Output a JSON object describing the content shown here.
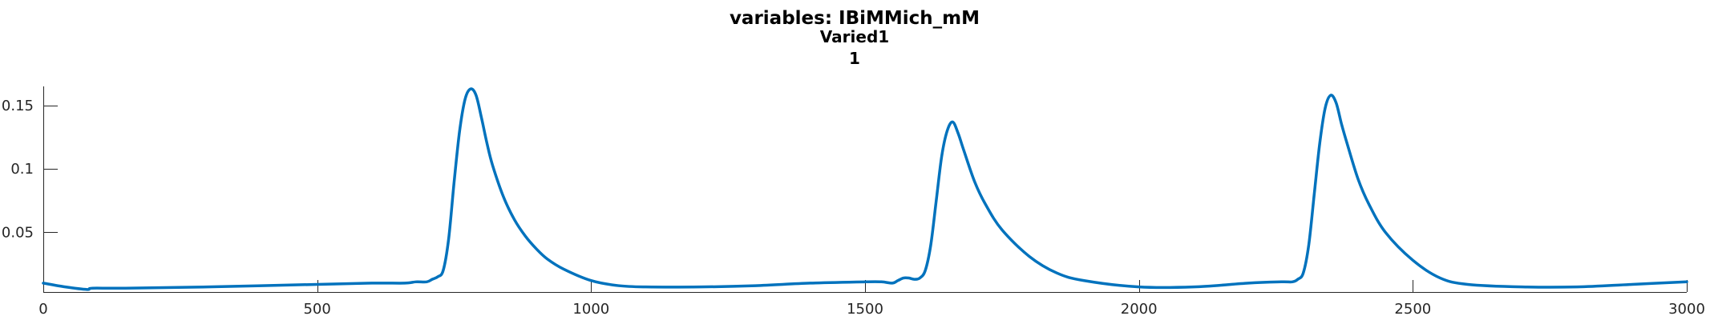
{
  "chart_data": {
    "type": "line",
    "title": "variables: IBiMMich_mM",
    "subtitle": "Varied1",
    "subtitle2": "1",
    "xlabel": "",
    "ylabel": "",
    "xlim": [
      0,
      3000
    ],
    "ylim": [
      0.003,
      0.165
    ],
    "xticks": [
      0,
      500,
      1000,
      1500,
      2000,
      2500,
      3000
    ],
    "xtick_labels": [
      "0",
      "500",
      "1000",
      "1500",
      "2000",
      "2500",
      "3000"
    ],
    "yticks": [
      0.05,
      0.1,
      0.15
    ],
    "ytick_labels": [
      "0.05",
      "0.1",
      "0.15"
    ],
    "grid": false,
    "legend": "none",
    "series": [
      {
        "color": "#0072BD",
        "x": [
          0,
          40,
          80,
          90,
          150,
          300,
          500,
          600,
          660,
          680,
          700,
          710,
          720,
          730,
          740,
          750,
          760,
          770,
          780,
          790,
          800,
          810,
          820,
          840,
          860,
          880,
          900,
          920,
          950,
          1000,
          1050,
          1100,
          1200,
          1300,
          1400,
          1500,
          1530,
          1550,
          1560,
          1570,
          1580,
          1590,
          1600,
          1610,
          1620,
          1630,
          1640,
          1650,
          1660,
          1670,
          1680,
          1700,
          1720,
          1750,
          1800,
          1850,
          1900,
          2000,
          2100,
          2200,
          2260,
          2280,
          2290,
          2300,
          2310,
          2320,
          2330,
          2340,
          2350,
          2360,
          2370,
          2380,
          2400,
          2420,
          2450,
          2500,
          2550,
          2600,
          2700,
          2800,
          2900,
          3000
        ],
        "y": [
          0.01,
          0.007,
          0.005,
          0.006,
          0.006,
          0.007,
          0.009,
          0.01,
          0.01,
          0.011,
          0.011,
          0.013,
          0.015,
          0.02,
          0.045,
          0.09,
          0.13,
          0.155,
          0.163,
          0.158,
          0.14,
          0.12,
          0.103,
          0.078,
          0.06,
          0.047,
          0.037,
          0.029,
          0.021,
          0.012,
          0.008,
          0.007,
          0.007,
          0.008,
          0.01,
          0.011,
          0.011,
          0.01,
          0.012,
          0.014,
          0.014,
          0.013,
          0.014,
          0.02,
          0.04,
          0.075,
          0.11,
          0.13,
          0.137,
          0.128,
          0.115,
          0.09,
          0.072,
          0.052,
          0.031,
          0.018,
          0.012,
          0.007,
          0.007,
          0.01,
          0.011,
          0.011,
          0.013,
          0.018,
          0.04,
          0.08,
          0.12,
          0.148,
          0.158,
          0.152,
          0.135,
          0.12,
          0.092,
          0.072,
          0.05,
          0.028,
          0.014,
          0.009,
          0.007,
          0.007,
          0.009,
          0.011
        ]
      }
    ]
  }
}
